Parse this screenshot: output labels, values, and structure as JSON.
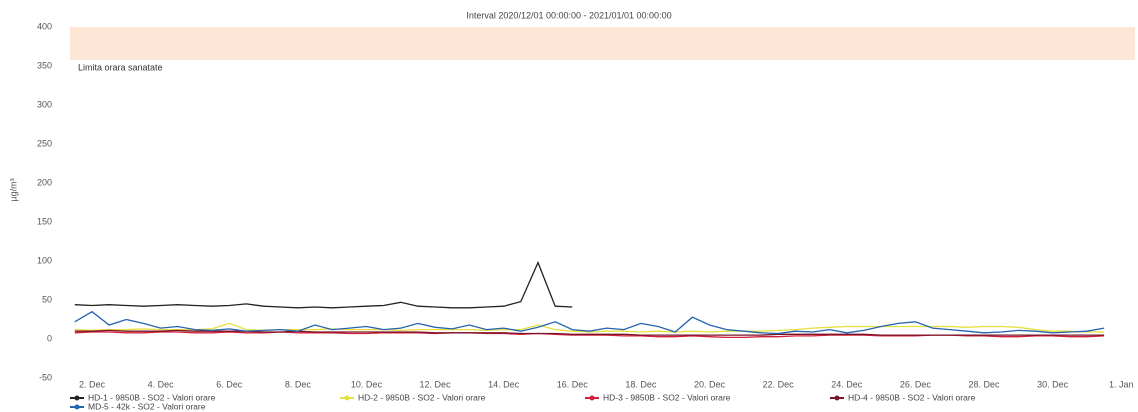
{
  "chart_data": {
    "type": "line",
    "title": "Interval 2020/12/01 00:00:00 - 2021/01/01 00:00:00",
    "y_label": "µg/m³",
    "plot_band": {
      "from": 350,
      "to": 400,
      "label": "Limita orara sanatate",
      "color": "#fde6d6"
    },
    "x": [
      1.5,
      2,
      2.5,
      3,
      3.5,
      4,
      4.5,
      5,
      5.5,
      6,
      6.5,
      7,
      7.5,
      8,
      8.5,
      9,
      9.5,
      10,
      10.5,
      11,
      11.5,
      12,
      12.5,
      13,
      13.5,
      14,
      14.5,
      15,
      15.5,
      16,
      16.5,
      17,
      17.5,
      18,
      18.5,
      19,
      19.5,
      20,
      20.5,
      21,
      21.5,
      22,
      22.5,
      23,
      23.5,
      24,
      24.5,
      25,
      25.5,
      26,
      26.5,
      27,
      27.5,
      28,
      28.5,
      29,
      29.5,
      30,
      30.5,
      31,
      31.5
    ],
    "xlim": [
      1.36,
      32.4
    ],
    "xticks": [
      {
        "value": 2,
        "label": "2. Dec"
      },
      {
        "value": 4,
        "label": "4. Dec"
      },
      {
        "value": 6,
        "label": "6. Dec"
      },
      {
        "value": 8,
        "label": "8. Dec"
      },
      {
        "value": 10,
        "label": "10. Dec"
      },
      {
        "value": 12,
        "label": "12. Dec"
      },
      {
        "value": 14,
        "label": "14. Dec"
      },
      {
        "value": 16,
        "label": "16. Dec"
      },
      {
        "value": 18,
        "label": "18. Dec"
      },
      {
        "value": 20,
        "label": "20. Dec"
      },
      {
        "value": 22,
        "label": "22. Dec"
      },
      {
        "value": 24,
        "label": "24. Dec"
      },
      {
        "value": 26,
        "label": "26. Dec"
      },
      {
        "value": 28,
        "label": "28. Dec"
      },
      {
        "value": 30,
        "label": "30. Dec"
      },
      {
        "value": 32,
        "label": "1. Jan"
      }
    ],
    "ylim": [
      -50,
      400
    ],
    "yticks": [
      -50,
      0,
      50,
      100,
      150,
      200,
      250,
      300,
      350,
      400
    ],
    "series": [
      {
        "name": "HD-1 - 9850B - SO2 - Valori orare",
        "color": "#222222",
        "values": [
          44,
          43,
          44,
          43,
          42,
          43,
          44,
          43,
          42,
          43,
          45,
          42,
          41,
          40,
          41,
          40,
          41,
          42,
          43,
          47,
          42,
          41,
          40,
          40,
          41,
          42,
          48,
          98,
          42,
          41,
          null,
          null,
          null,
          null,
          null,
          null,
          null,
          null,
          null,
          null,
          null,
          null,
          null,
          null,
          null,
          null,
          null,
          null,
          null,
          null,
          null,
          null,
          null,
          null,
          null,
          null,
          null,
          null,
          null,
          null,
          null
        ]
      },
      {
        "name": "HD-2 - 9850B - SO2 - Valori orare",
        "color": "#e6df3c",
        "values": [
          12,
          11,
          12,
          12,
          13,
          12,
          12,
          12,
          13,
          20,
          12,
          11,
          12,
          12,
          12,
          13,
          12,
          12,
          12,
          11,
          12,
          12,
          12,
          12,
          11,
          12,
          12,
          18,
          12,
          10,
          9,
          10,
          10,
          9,
          10,
          9,
          10,
          9,
          10,
          10,
          10,
          11,
          12,
          14,
          15,
          16,
          16,
          16,
          16,
          16,
          16,
          16,
          15,
          16,
          16,
          15,
          12,
          10,
          10,
          9,
          9
        ]
      },
      {
        "name": "HD-3 - 9850B - SO2 - Valori orare",
        "color": "#d0203a",
        "values": [
          8,
          9,
          9,
          8,
          8,
          9,
          9,
          8,
          8,
          9,
          8,
          8,
          9,
          8,
          8,
          8,
          7,
          7,
          8,
          8,
          8,
          7,
          8,
          8,
          7,
          7,
          6,
          7,
          6,
          5,
          5,
          5,
          4,
          4,
          3,
          3,
          4,
          3,
          2,
          2,
          3,
          3,
          4,
          4,
          5,
          5,
          5,
          4,
          4,
          4,
          5,
          5,
          4,
          4,
          3,
          3,
          4,
          4,
          3,
          3,
          4
        ]
      },
      {
        "name": "HD-4 - 9850B - SO2 - Valori orare",
        "color": "#7a1428",
        "values": [
          10,
          10,
          11,
          10,
          10,
          10,
          11,
          10,
          10,
          10,
          10,
          9,
          9,
          10,
          9,
          9,
          9,
          9,
          9,
          9,
          9,
          8,
          8,
          8,
          8,
          8,
          7,
          7,
          7,
          6,
          6,
          6,
          6,
          5,
          5,
          5,
          5,
          5,
          5,
          5,
          5,
          6,
          6,
          6,
          6,
          6,
          6,
          5,
          5,
          5,
          5,
          5,
          5,
          5,
          5,
          5,
          5,
          5,
          5,
          5,
          5
        ]
      },
      {
        "name": "MD-5 - 42k - SO2 - Valori orare",
        "color": "#2463b0",
        "values": [
          22,
          35,
          18,
          25,
          20,
          14,
          16,
          12,
          11,
          13,
          10,
          11,
          12,
          10,
          18,
          12,
          14,
          16,
          12,
          14,
          20,
          15,
          13,
          18,
          12,
          14,
          10,
          15,
          22,
          12,
          10,
          14,
          12,
          20,
          16,
          9,
          28,
          18,
          12,
          10,
          8,
          7,
          10,
          9,
          12,
          8,
          11,
          16,
          20,
          22,
          14,
          12,
          10,
          8,
          9,
          11,
          10,
          8,
          9,
          10,
          14
        ]
      }
    ]
  }
}
